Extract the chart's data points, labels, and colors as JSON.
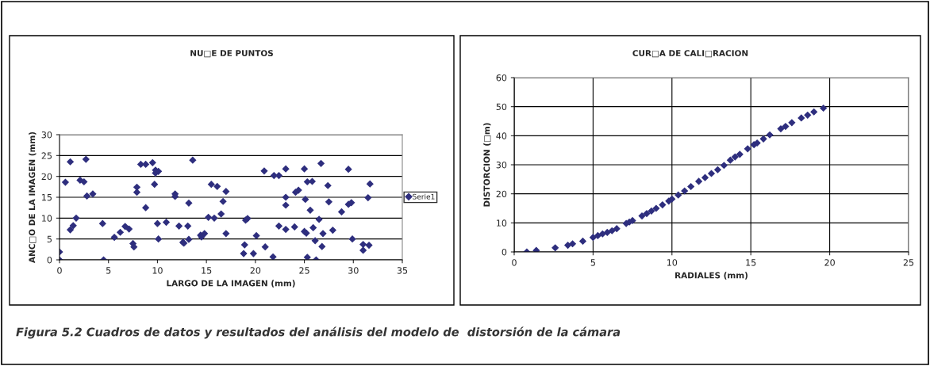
{
  "chart_data": [
    {
      "type": "scatter",
      "title": "NU□E DE PUNTOS",
      "xlabel": "LARGO DE LA IMAGEN (mm)",
      "ylabel": "ANC□O DE LA IMAGEN (mm)",
      "xlim": [
        0,
        35
      ],
      "xticks": [
        0,
        5,
        10,
        15,
        20,
        25,
        30,
        35
      ],
      "ylim": [
        0,
        30
      ],
      "yticks": [
        0,
        5,
        10,
        15,
        20,
        25,
        30
      ],
      "grid": "y",
      "legend": "right",
      "marker": "diamond",
      "annotations": [
        "Figura 5.2 Cuadros de datos y resultados del análisis del modelo de  distorsión de la cámara"
      ],
      "series": [
        {
          "name": "Serie1",
          "color": "#2e2e7e",
          "x": [
            0,
            0,
            0.6,
            1.1,
            1.1,
            1.4,
            1.7,
            2.1,
            2.5,
            2.7,
            2.8,
            3.4,
            4.4,
            4.5,
            5.6,
            6.2,
            6.7,
            7.1,
            7.5,
            7.6,
            7.9,
            7.9,
            8.3,
            8.8,
            8.8,
            9.5,
            9.7,
            9.8,
            9.8,
            10.1,
            10.0,
            10.1,
            10.9,
            11.8,
            11.8,
            12.2,
            12.6,
            12.7,
            13.1,
            13.2,
            13.2,
            13.6,
            14.4,
            14.5,
            14.8,
            15.2,
            15.5,
            15.8,
            16.1,
            16.5,
            16.7,
            17.0,
            17.0,
            18.9,
            18.8,
            19.0,
            19.2,
            19.8,
            20.1,
            20.9,
            21.0,
            21.8,
            21.9,
            22.4,
            22.4,
            23.1,
            23.1,
            23.1,
            23.1,
            24.0,
            24.1,
            24.4,
            25.0,
            25.1,
            25.0,
            25.2,
            25.3,
            25.3,
            25.6,
            25.8,
            25.9,
            26.1,
            26.2,
            26.5,
            26.7,
            26.8,
            26.9,
            27.4,
            27.5,
            27.9,
            28.8,
            29.5,
            29.5,
            29.8,
            29.9,
            31.0,
            31.0,
            31.5,
            31.6,
            31.7
          ],
          "values": [
            1.9,
            0,
            18.6,
            23.5,
            7.2,
            8.2,
            10.0,
            19.1,
            18.7,
            24.1,
            15.3,
            15.8,
            8.7,
            0,
            5.4,
            6.6,
            8.0,
            7.4,
            3.9,
            3.1,
            17.4,
            16.2,
            22.9,
            22.9,
            12.5,
            23.3,
            18.1,
            21.5,
            20.8,
            21.2,
            8.7,
            5.0,
            9.0,
            15.8,
            15.2,
            8.1,
            4.2,
            4.0,
            8.1,
            13.6,
            4.9,
            23.9,
            5.9,
            5.5,
            6.3,
            10.2,
            18.1,
            10.0,
            17.6,
            11.0,
            14.0,
            16.4,
            6.3,
            3.6,
            1.5,
            9.5,
            9.9,
            1.5,
            5.8,
            21.3,
            3.1,
            0.7,
            20.2,
            20.2,
            8.1,
            21.8,
            15.0,
            13.1,
            7.3,
            7.9,
            16.2,
            16.7,
            21.8,
            14.5,
            6.8,
            6.4,
            18.7,
            0.6,
            11.9,
            18.8,
            7.7,
            4.6,
            0,
            9.7,
            23.1,
            3.2,
            6.3,
            17.8,
            13.9,
            7.1,
            11.5,
            21.7,
            13.3,
            13.7,
            5.0,
            3.7,
            2.3,
            14.9,
            3.5,
            18.2
          ]
        }
      ]
    },
    {
      "type": "scatter",
      "title": "CUR□A DE CALI□RACION",
      "xlabel": "RADIALES (mm)",
      "ylabel": "DISTORCION (□m)",
      "xlim": [
        0,
        25
      ],
      "xticks": [
        0,
        5,
        10,
        15,
        20,
        25
      ],
      "ylim": [
        0,
        60
      ],
      "yticks": [
        0,
        10,
        20,
        30,
        40,
        50,
        60
      ],
      "grid": true,
      "marker": "diamond",
      "series": [
        {
          "color": "#2e2e7e",
          "x": [
            0.8,
            1.4,
            2.6,
            3.4,
            3.7,
            4.35,
            5.0,
            5.3,
            5.6,
            5.9,
            6.2,
            6.5,
            7.1,
            7.3,
            7.5,
            8.1,
            8.4,
            8.7,
            9.0,
            9.4,
            9.8,
            10.0,
            10.4,
            10.8,
            11.2,
            11.7,
            12.1,
            12.5,
            12.9,
            13.3,
            13.7,
            14.0,
            14.3,
            14.8,
            15.2,
            15.4,
            15.8,
            16.2,
            16.9,
            17.2,
            17.6,
            18.2,
            18.6,
            19.0,
            19.6
          ],
          "values": [
            0,
            0.5,
            1.4,
            2.3,
            2.8,
            3.7,
            5.0,
            5.6,
            6.2,
            6.7,
            7.3,
            8.0,
            9.8,
            10.3,
            10.8,
            12.4,
            13.2,
            14.1,
            15.0,
            16.2,
            17.5,
            18.2,
            19.6,
            21.0,
            22.5,
            24.3,
            25.6,
            27.0,
            28.3,
            29.8,
            31.6,
            32.7,
            33.6,
            35.5,
            36.9,
            37.5,
            38.9,
            40.3,
            42.4,
            43.2,
            44.5,
            46.1,
            47.1,
            48.2,
            49.5
          ]
        }
      ]
    }
  ]
}
